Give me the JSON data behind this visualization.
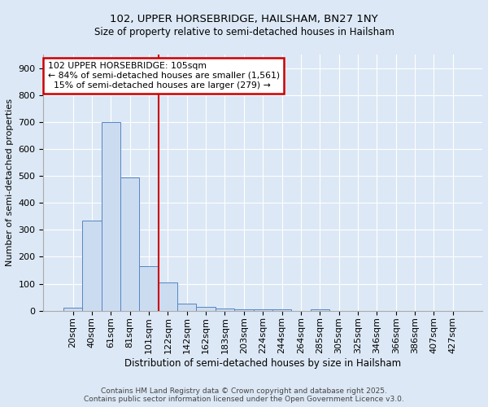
{
  "title1": "102, UPPER HORSEBRIDGE, HAILSHAM, BN27 1NY",
  "title2": "Size of property relative to semi-detached houses in Hailsham",
  "xlabel": "Distribution of semi-detached houses by size in Hailsham",
  "ylabel": "Number of semi-detached properties",
  "bar_labels": [
    "20sqm",
    "40sqm",
    "61sqm",
    "81sqm",
    "101sqm",
    "122sqm",
    "142sqm",
    "162sqm",
    "183sqm",
    "203sqm",
    "224sqm",
    "244sqm",
    "264sqm",
    "285sqm",
    "305sqm",
    "325sqm",
    "346sqm",
    "366sqm",
    "386sqm",
    "407sqm",
    "427sqm"
  ],
  "bar_values": [
    10,
    335,
    700,
    495,
    165,
    105,
    25,
    15,
    8,
    5,
    5,
    5,
    0,
    5,
    0,
    0,
    0,
    0,
    0,
    0,
    0
  ],
  "bar_color": "#ccdcf0",
  "bar_edge_color": "#5585c5",
  "red_line_x": 4.5,
  "annotation_title": "102 UPPER HORSEBRIDGE: 105sqm",
  "annotation_line1": "← 84% of semi-detached houses are smaller (1,561)",
  "annotation_line2": "  15% of semi-detached houses are larger (279) →",
  "annotation_box_color": "#ffffff",
  "annotation_box_edge": "#cc0000",
  "red_line_color": "#cc0000",
  "ylim": [
    0,
    950
  ],
  "yticks": [
    0,
    100,
    200,
    300,
    400,
    500,
    600,
    700,
    800,
    900
  ],
  "footer1": "Contains HM Land Registry data © Crown copyright and database right 2025.",
  "footer2": "Contains public sector information licensed under the Open Government Licence v3.0.",
  "bg_color": "#dce8f5",
  "plot_bg_color": "#dce8f5",
  "title_fontsize": 9.5,
  "subtitle_fontsize": 8.5
}
